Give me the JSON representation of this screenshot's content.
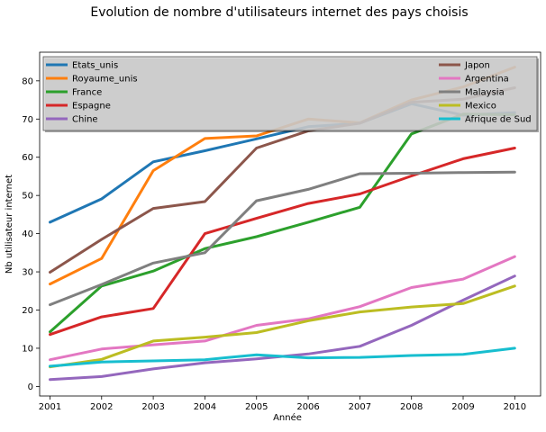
{
  "chart_data": {
    "type": "line",
    "title": "Evolution de nombre d'utilisateurs internet des pays choisis",
    "xlabel": "Année",
    "ylabel": "Nb utilisateur internet",
    "x": [
      2001,
      2002,
      2003,
      2004,
      2005,
      2006,
      2007,
      2008,
      2009,
      2010
    ],
    "xlim": [
      2000.8,
      2010.5
    ],
    "ylim": [
      -2.5,
      87.5
    ],
    "yticks": [
      0,
      10,
      20,
      30,
      40,
      50,
      60,
      70,
      80
    ],
    "grid": false,
    "legend_position": "top",
    "series": [
      {
        "name": "Etats_unis",
        "color": "#1f77b4",
        "values": [
          43.0,
          49.1,
          58.8,
          61.7,
          64.8,
          68.0,
          68.9,
          74.0,
          71.0,
          71.7
        ]
      },
      {
        "name": "Royaume_unis",
        "color": "#ff7f0e",
        "values": [
          26.8,
          33.5,
          56.5,
          64.9,
          65.6,
          70.0,
          69.0,
          75.0,
          78.4,
          83.6
        ]
      },
      {
        "name": "France",
        "color": "#2ca02c",
        "values": [
          14.3,
          26.3,
          30.2,
          36.1,
          39.2,
          43.0,
          46.9,
          66.1,
          71.3,
          71.1
        ]
      },
      {
        "name": "Espagne",
        "color": "#d62728",
        "values": [
          13.6,
          18.2,
          20.4,
          40.0,
          44.0,
          47.9,
          50.4,
          55.1,
          59.6,
          62.4
        ]
      },
      {
        "name": "Chine",
        "color": "#9467bd",
        "values": [
          1.8,
          2.6,
          4.6,
          6.2,
          7.2,
          8.5,
          10.5,
          16.0,
          22.6,
          28.9
        ]
      },
      {
        "name": "Japon",
        "color": "#8c564b",
        "values": [
          29.9,
          38.5,
          46.6,
          48.4,
          62.4,
          66.9,
          68.9,
          74.4,
          75.2,
          78.2
        ]
      },
      {
        "name": "Argentina",
        "color": "#e377c2",
        "values": [
          7.0,
          9.8,
          10.9,
          11.9,
          16.0,
          17.7,
          20.9,
          25.9,
          28.1,
          34.0
        ]
      },
      {
        "name": "Malaysia",
        "color": "#7f7f7f",
        "values": [
          21.4,
          26.7,
          32.3,
          35.0,
          48.6,
          51.6,
          55.7,
          55.8,
          56.0,
          56.1
        ]
      },
      {
        "name": "Mexico",
        "color": "#bcbd22",
        "values": [
          5.1,
          7.1,
          11.9,
          12.9,
          14.1,
          17.2,
          19.5,
          20.8,
          21.7,
          26.3
        ]
      },
      {
        "name": "Afrique de Sud",
        "color": "#17becf",
        "values": [
          5.3,
          6.4,
          6.7,
          7.0,
          8.3,
          7.5,
          7.6,
          8.1,
          8.4,
          10.0
        ]
      }
    ]
  }
}
